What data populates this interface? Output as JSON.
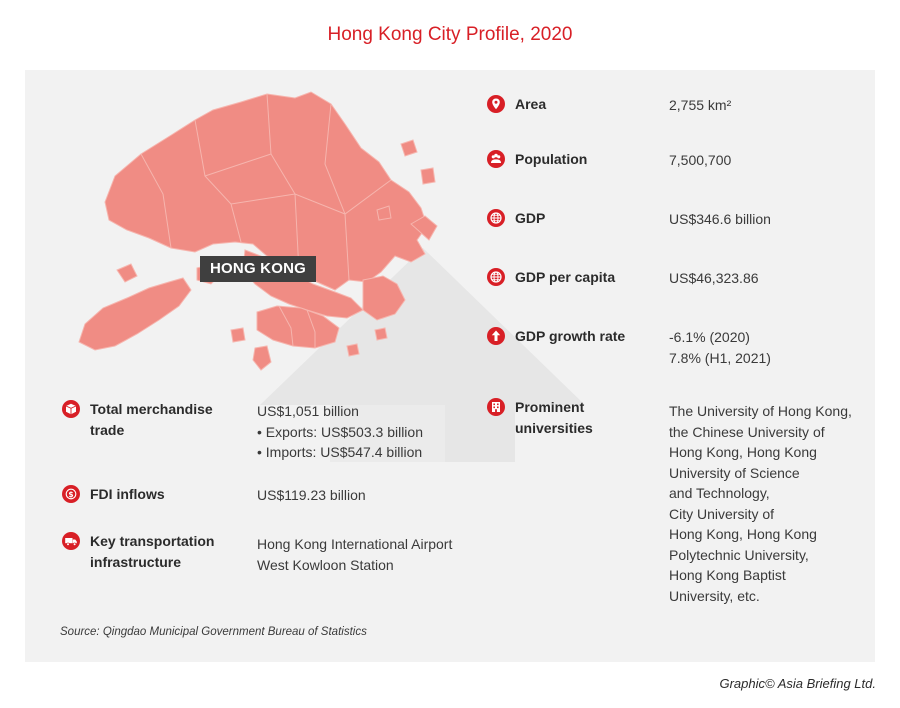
{
  "title": "Hong Kong City Profile, 2020",
  "map": {
    "label": "HONG KONG",
    "fill": "#f08c84"
  },
  "colors": {
    "accent": "#d81f26",
    "panel": "#f2f2f2",
    "label_box": "#3f3f3f"
  },
  "stats_right": [
    {
      "icon": "location-pin-icon",
      "label": "Area",
      "value": [
        "2,755 km²"
      ]
    },
    {
      "icon": "people-icon",
      "label": "Population",
      "value": [
        "7,500,700"
      ]
    },
    {
      "icon": "globe-icon",
      "label": "GDP",
      "value": [
        "US$346.6 billion"
      ]
    },
    {
      "icon": "globe-icon",
      "label": "GDP per capita",
      "value": [
        "US$46,323.86"
      ]
    },
    {
      "icon": "arrow-up-icon",
      "label": "GDP growth rate",
      "value": [
        "-6.1% (2020)",
        "7.8% (H1, 2021)"
      ]
    },
    {
      "icon": "building-icon",
      "label": [
        "Prominent",
        "universities"
      ],
      "value": [
        "The University of Hong Kong,",
        "the Chinese University of",
        "Hong Kong, Hong Kong",
        "University of Science",
        "and Technology,",
        "City University of",
        "Hong Kong, Hong Kong",
        "Polytechnic University,",
        "Hong Kong Baptist",
        "University, etc."
      ]
    }
  ],
  "stats_left": [
    {
      "icon": "box-icon",
      "label": [
        "Total merchandise",
        "trade"
      ],
      "value": [
        "US$1,051 billion",
        "• Exports: US$503.3 billion",
        "• Imports: US$547.4 billion"
      ]
    },
    {
      "icon": "dollar-icon",
      "label": [
        "FDI inflows"
      ],
      "value": [
        "US$119.23 billion"
      ]
    },
    {
      "icon": "truck-icon",
      "label": [
        "Key transportation",
        "infrastructure"
      ],
      "value": [
        "Hong Kong International Airport",
        "West Kowloon Station"
      ]
    }
  ],
  "source": "Source: Qingdao Municipal Government Bureau of Statistics",
  "credit": "Graphic© Asia Briefing Ltd."
}
